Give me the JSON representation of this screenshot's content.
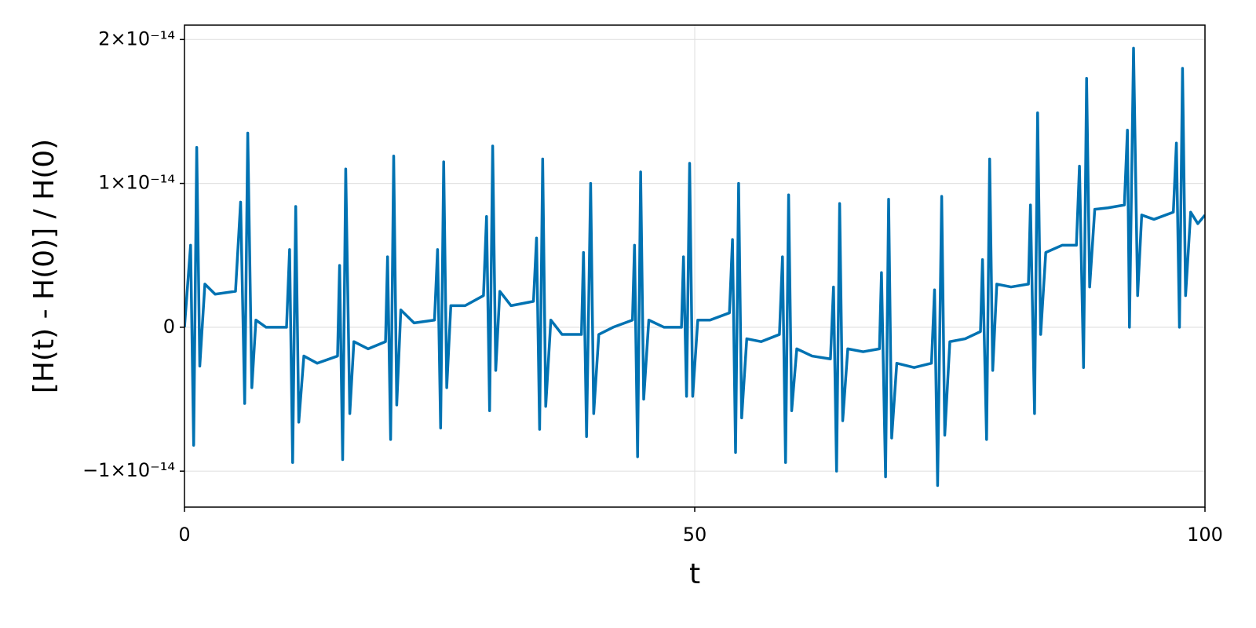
{
  "chart_data": {
    "type": "line",
    "xlabel": "t",
    "ylabel": "[H(t) - H(0)] / H(0)",
    "xlim": [
      0,
      100
    ],
    "ylim": [
      -1.25e-14,
      2.1e-14
    ],
    "xticks": [
      0,
      50,
      100
    ],
    "yticks": [
      {
        "value": -1e-14,
        "label": "−1×10⁻¹⁴"
      },
      0,
      {
        "value": 1e-14,
        "label": "1×10⁻¹⁴"
      },
      {
        "value": 2e-14,
        "label": "2×10⁻¹⁴"
      }
    ],
    "grid": true,
    "x": [
      0,
      0.6,
      0.9,
      1.2,
      1.5,
      2.0,
      3,
      5,
      5.5,
      5.9,
      6.2,
      6.6,
      7.0,
      8,
      10,
      10.3,
      10.6,
      10.9,
      11.2,
      11.7,
      13,
      15,
      15.2,
      15.5,
      15.8,
      16.2,
      16.6,
      18,
      19.7,
      19.9,
      20.2,
      20.5,
      20.8,
      21.2,
      22.5,
      24.5,
      24.8,
      25.1,
      25.4,
      25.7,
      26.1,
      27.5,
      29.3,
      29.6,
      29.9,
      30.2,
      30.5,
      30.9,
      32,
      34.2,
      34.5,
      34.8,
      35.1,
      35.4,
      35.9,
      37,
      38.9,
      39.1,
      39.4,
      39.8,
      40.1,
      40.6,
      42,
      43.9,
      44.1,
      44.4,
      44.7,
      45.0,
      45.5,
      47,
      48.7,
      48.9,
      49.2,
      49.5,
      49.8,
      50.3,
      51.5,
      53.4,
      53.7,
      54.0,
      54.3,
      54.6,
      55.1,
      56.5,
      58.3,
      58.6,
      58.9,
      59.2,
      59.5,
      60.0,
      61.5,
      63.3,
      63.6,
      63.9,
      64.2,
      64.5,
      65.0,
      66.5,
      68.1,
      68.3,
      68.7,
      69.0,
      69.3,
      69.8,
      71.5,
      73.2,
      73.5,
      73.8,
      74.2,
      74.5,
      75.0,
      76.5,
      78,
      78.2,
      78.6,
      78.9,
      79.2,
      79.6,
      81,
      82.7,
      82.9,
      83.3,
      83.6,
      83.9,
      84.4,
      86,
      87.4,
      87.7,
      88.1,
      88.4,
      88.7,
      89.2,
      90.5,
      92.1,
      92.4,
      92.6,
      93.0,
      93.4,
      93.8,
      95,
      96.9,
      97.2,
      97.5,
      97.8,
      98.1,
      98.6,
      99.3,
      100
    ],
    "series": [
      {
        "color": "#0072b2",
        "values": [
          0,
          5.7e-15,
          -8.2e-15,
          1.25e-14,
          -2.7e-15,
          3e-15,
          2.3e-15,
          2.5e-15,
          8.7e-15,
          -5.3e-15,
          1.35e-14,
          -4.2e-15,
          5e-16,
          0,
          0,
          5.4e-15,
          -9.4e-15,
          8.4e-15,
          -6.6e-15,
          -2e-15,
          -2.5e-15,
          -2e-15,
          4.3e-15,
          -9.2e-15,
          1.1e-14,
          -6e-15,
          -1e-15,
          -1.5e-15,
          -1e-15,
          4.9e-15,
          -7.8e-15,
          1.19e-14,
          -5.4e-15,
          1.2e-15,
          3e-16,
          5e-16,
          5.4e-15,
          -7e-15,
          1.15e-14,
          -4.2e-15,
          1.5e-15,
          1.5e-15,
          2.2e-15,
          7.7e-15,
          -5.8e-15,
          1.26e-14,
          -3e-15,
          2.5e-15,
          1.5e-15,
          1.8e-15,
          6.2e-15,
          -7.1e-15,
          1.17e-14,
          -5.5e-15,
          5e-16,
          -5e-16,
          -5e-16,
          5.2e-15,
          -7.6e-15,
          1e-14,
          -6e-15,
          -5e-16,
          0,
          5e-16,
          5.7e-15,
          -9e-15,
          1.08e-14,
          -5e-15,
          5e-16,
          0,
          0,
          4.9e-15,
          -4.8e-15,
          1.14e-14,
          -4.8e-15,
          5e-16,
          5e-16,
          1e-15,
          6.1e-15,
          -8.7e-15,
          1e-14,
          -6.3e-15,
          -8e-16,
          -1e-15,
          -5e-16,
          4.9e-15,
          -9.4e-15,
          9.2e-15,
          -5.8e-15,
          -1.5e-15,
          -2e-15,
          -2.2e-15,
          2.8e-15,
          -1e-14,
          8.6e-15,
          -6.5e-15,
          -1.5e-15,
          -1.7e-15,
          -1.5e-15,
          3.8e-15,
          -1.04e-14,
          8.9e-15,
          -7.7e-15,
          -2.5e-15,
          -2.8e-15,
          -2.5e-15,
          2.6e-15,
          -1.1e-14,
          9.1e-15,
          -7.5e-15,
          -1e-15,
          -8e-16,
          -3e-16,
          4.7e-15,
          -7.8e-15,
          1.17e-14,
          -3e-15,
          3e-15,
          2.8e-15,
          3e-15,
          8.5e-15,
          -6e-15,
          1.49e-14,
          -5e-16,
          5.2e-15,
          5.7e-15,
          5.7e-15,
          1.12e-14,
          -2.8e-15,
          1.73e-14,
          2.8e-15,
          8.2e-15,
          8.3e-15,
          8.5e-15,
          1.37e-14,
          0,
          1.94e-14,
          2.2e-15,
          7.8e-15,
          7.5e-15,
          8e-15,
          1.28e-14,
          0,
          1.8e-14,
          2.2e-15,
          8e-15,
          7.2e-15,
          7.8e-15
        ]
      }
    ]
  }
}
